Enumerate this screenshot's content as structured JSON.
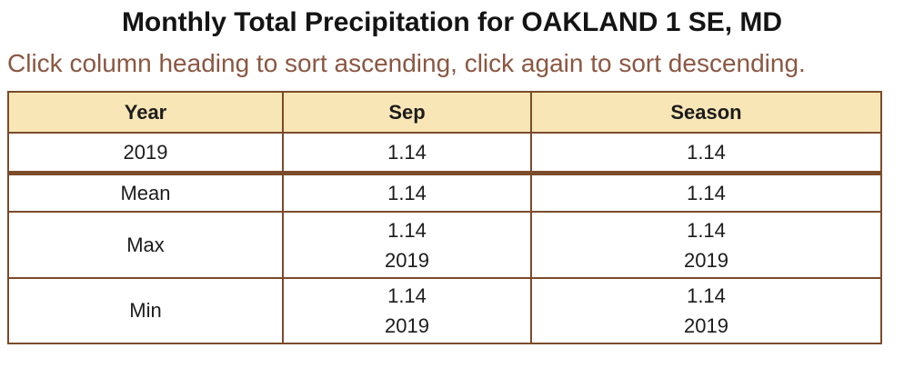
{
  "page": {
    "title": "Monthly Total Precipitation for OAKLAND 1 SE, MD",
    "subtitle": "Click column heading to sort ascending, click again to sort descending."
  },
  "colors": {
    "header_bg": "#f9e6b6",
    "table_border": "#7b4b2a",
    "subtitle_text": "#8b5742",
    "title_text": "#141414",
    "page_bg": "#ffffff"
  },
  "table": {
    "columns": [
      {
        "label": "Year"
      },
      {
        "label": "Sep"
      },
      {
        "label": "Season"
      }
    ],
    "data_rows": [
      {
        "year": "2019",
        "sep": "1.14",
        "season": "1.14"
      }
    ],
    "summary_rows": [
      {
        "label": "Mean",
        "sep": {
          "value": "1.14",
          "year": ""
        },
        "season": {
          "value": "1.14",
          "year": ""
        }
      },
      {
        "label": "Max",
        "sep": {
          "value": "1.14",
          "year": "2019"
        },
        "season": {
          "value": "1.14",
          "year": "2019"
        }
      },
      {
        "label": "Min",
        "sep": {
          "value": "1.14",
          "year": "2019"
        },
        "season": {
          "value": "1.14",
          "year": "2019"
        }
      }
    ]
  }
}
